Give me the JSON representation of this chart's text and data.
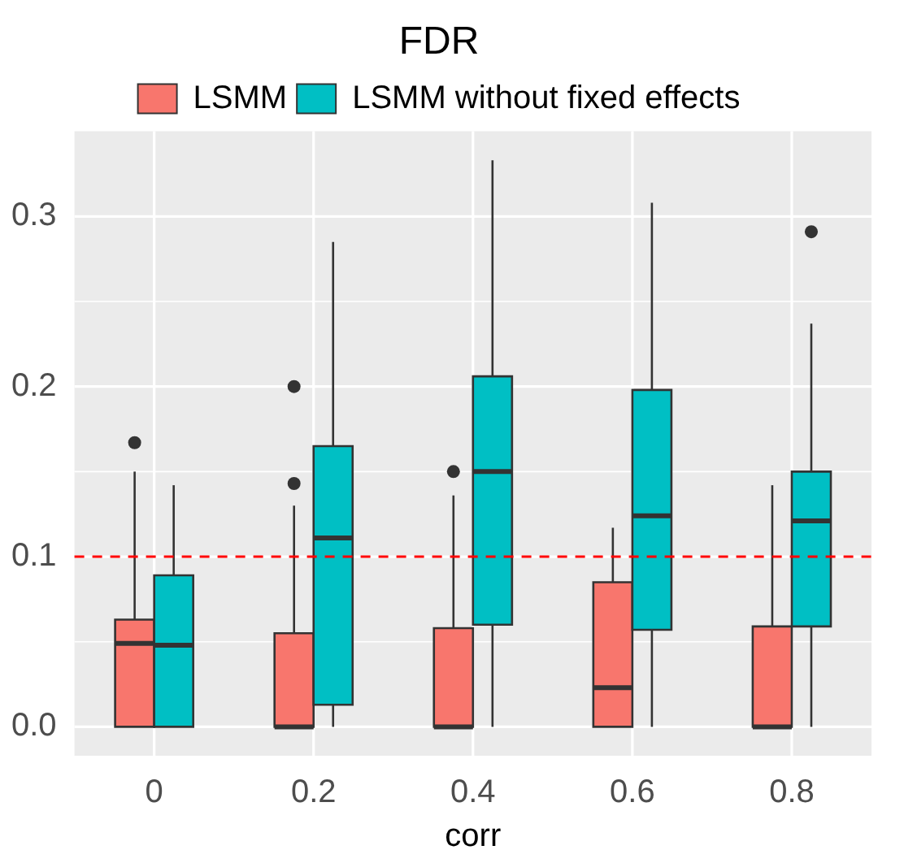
{
  "chart_data": {
    "type": "box",
    "title": "FDR",
    "xlabel": "corr",
    "categories": [
      "0",
      "0.2",
      "0.4",
      "0.6",
      "0.8"
    ],
    "ylim": [
      -0.017,
      0.35
    ],
    "yticks": [
      {
        "value": 0,
        "label": "0.0"
      },
      0.1,
      0.2,
      0.3
    ],
    "grid": true,
    "legend": "top",
    "ref_lines": [
      {
        "axis": "y",
        "value": 0.1,
        "color": "#ff0000",
        "line_style": "dashed"
      }
    ],
    "series": [
      {
        "name": "LSMM",
        "color": "#f8766d",
        "boxes": [
          {
            "low": 0,
            "q1": 0,
            "median": 0.049,
            "q3": 0.063,
            "high": 0.15,
            "outliers": [
              0.167
            ]
          },
          {
            "low": 0,
            "q1": 0,
            "median": 0,
            "q3": 0.055,
            "high": 0.13,
            "outliers": [
              0.143,
              0.2
            ]
          },
          {
            "low": 0,
            "q1": 0,
            "median": 0,
            "q3": 0.058,
            "high": 0.136,
            "outliers": [
              0.15
            ]
          },
          {
            "low": 0,
            "q1": 0,
            "median": 0.023,
            "q3": 0.085,
            "high": 0.117
          },
          {
            "low": 0,
            "q1": 0,
            "median": 0,
            "q3": 0.059,
            "high": 0.142
          }
        ]
      },
      {
        "name": "LSMM without fixed effects",
        "color": "#00bfc4",
        "boxes": [
          {
            "low": 0,
            "q1": 0,
            "median": 0.048,
            "q3": 0.089,
            "high": 0.142
          },
          {
            "low": 0,
            "q1": 0.013,
            "median": 0.111,
            "q3": 0.165,
            "high": 0.285
          },
          {
            "low": 0,
            "q1": 0.06,
            "median": 0.15,
            "q3": 0.206,
            "high": 0.333
          },
          {
            "low": 0,
            "q1": 0.057,
            "median": 0.124,
            "q3": 0.198,
            "high": 0.308
          },
          {
            "low": 0,
            "q1": 0.059,
            "median": 0.121,
            "q3": 0.15,
            "high": 0.237,
            "outliers": [
              0.291
            ]
          }
        ]
      }
    ]
  }
}
